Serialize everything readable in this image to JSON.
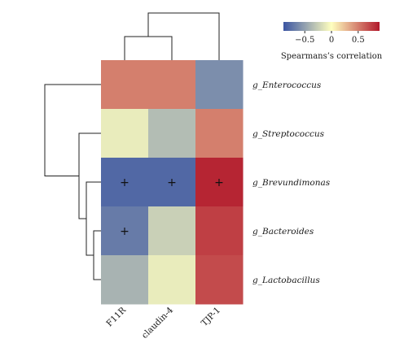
{
  "chart_data": {
    "type": "heatmap",
    "rows": [
      "g_Enterococcus",
      "g_Streptococcus",
      "g_Brevundimonas",
      "g_Bacteroides",
      "g_Lactobacillus"
    ],
    "columns": [
      "F11R",
      "claudin-4",
      "TJP-1"
    ],
    "values": [
      [
        0.5,
        0.5,
        -0.6
      ],
      [
        -0.1,
        -0.35,
        0.5
      ],
      [
        -0.8,
        -0.8,
        0.85
      ],
      [
        -0.7,
        -0.25,
        0.75
      ],
      [
        -0.4,
        -0.1,
        0.7
      ]
    ],
    "significant": [
      [
        false,
        false,
        false
      ],
      [
        false,
        false,
        false
      ],
      [
        true,
        true,
        true
      ],
      [
        true,
        false,
        false
      ],
      [
        false,
        false,
        false
      ]
    ],
    "significance_symbol": "+",
    "colorbar": {
      "title": "Spearmans’s correlation",
      "range": [
        -0.9,
        0.9
      ],
      "ticks": [
        -0.5,
        0,
        0.5
      ],
      "tick_labels": [
        "−0.5",
        "0",
        "0.5"
      ],
      "colors": [
        "#3b55a2",
        "#ffffbf",
        "#b2182b"
      ]
    },
    "row_dendrogram": true,
    "column_dendrogram": true
  }
}
